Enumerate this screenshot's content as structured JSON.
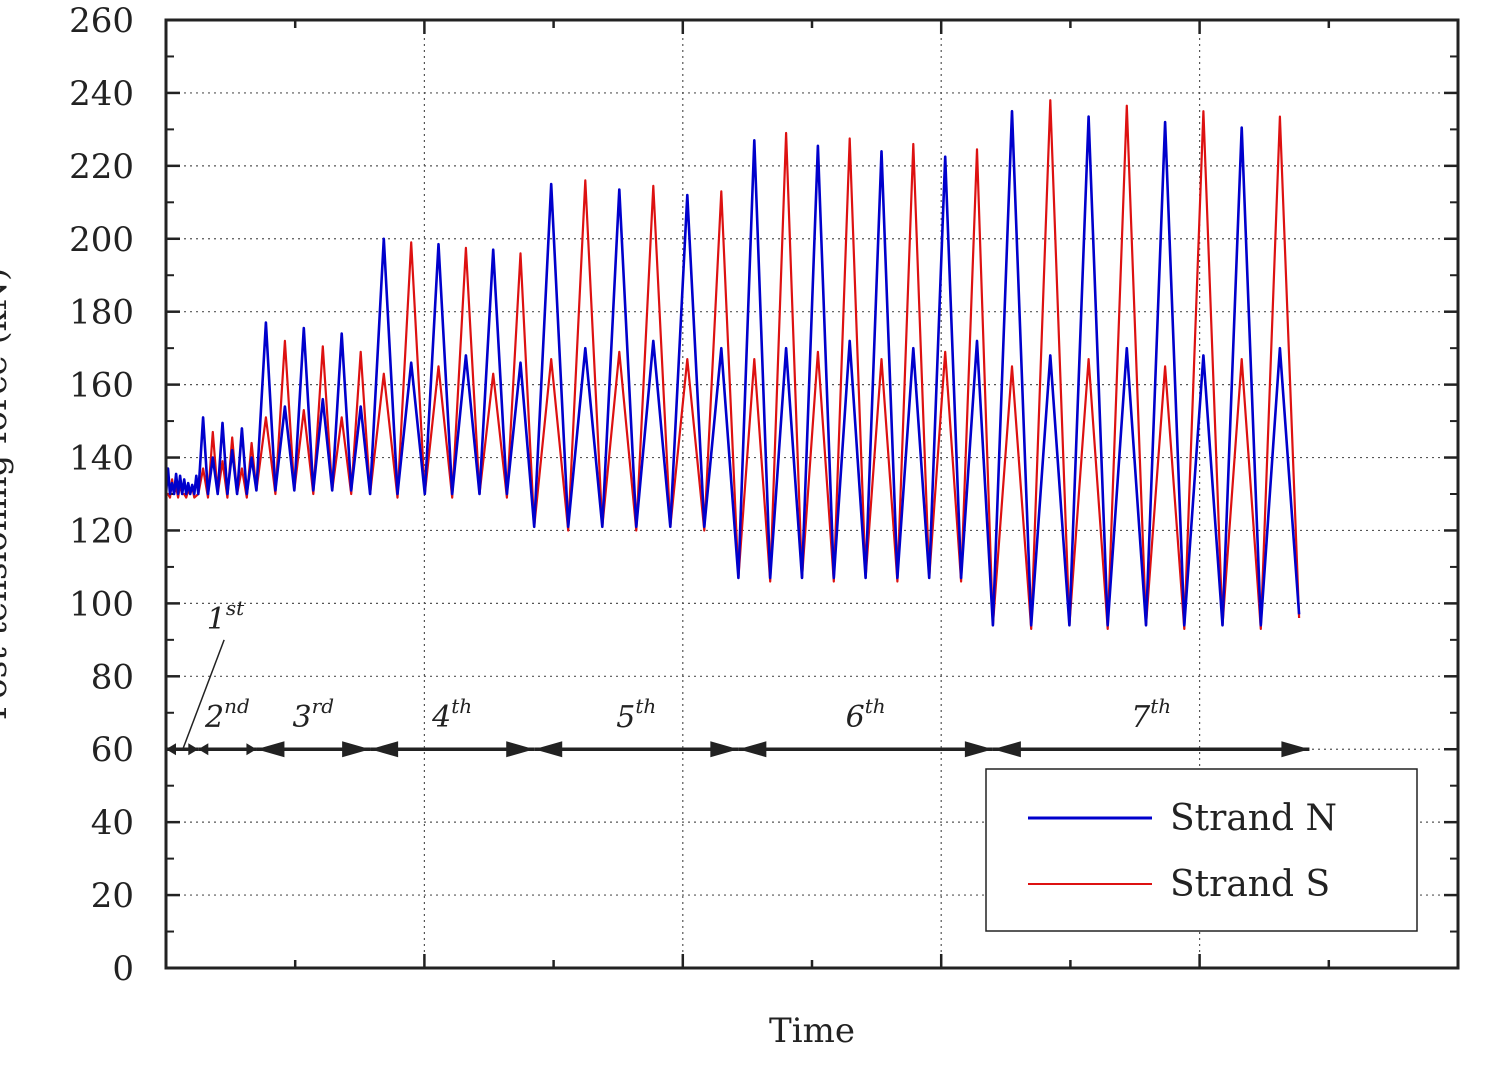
{
  "chart_data": {
    "type": "line",
    "xlabel": "Time",
    "ylabel": "Post-tensioning force (kN)",
    "ylim": [
      0,
      260
    ],
    "yticks": [
      0,
      20,
      40,
      60,
      80,
      100,
      120,
      140,
      160,
      180,
      200,
      220,
      240,
      260
    ],
    "xlim": [
      0,
      100
    ],
    "x_major_ticks": [
      0,
      20,
      40,
      60,
      80,
      100
    ],
    "grid": true,
    "legend_position": "bottom-right",
    "colors": {
      "strand_n": "#0000cc",
      "strand_s": "#dd1111",
      "arrows": "#222222"
    },
    "series": [
      {
        "name": "Strand N",
        "color": "#0000cc",
        "x": [
          0,
          0.4,
          0.8,
          1.2,
          1.6,
          2.0,
          2.4,
          2.8,
          3.2,
          3.5,
          3.8,
          4.1,
          4.5,
          5.0,
          5.7,
          6.3,
          7.0,
          7.6,
          8.2,
          8.6,
          9.2,
          10.0,
          10.6,
          11.5,
          12.3,
          13.1,
          14.0,
          14.9,
          15.7,
          16.5,
          17.4,
          18.2,
          19.1,
          20.0,
          21.0,
          22.1,
          23.1,
          24.1,
          25.1,
          26.2,
          27.2,
          28.2,
          29.2,
          30.1,
          31.0,
          32.2,
          33.4,
          34.6,
          35.7,
          36.8,
          37.9,
          39.1,
          40.3,
          41.4,
          42.5,
          44.3,
          45.9,
          47.6,
          49.3,
          50.9,
          52.6,
          54.3,
          56.0,
          57.6,
          59.3,
          61.0,
          62.6,
          64.2,
          66.6,
          68.6,
          70.8,
          72.9,
          75.0,
          77.2,
          79.2,
          81.3,
          83.4,
          85.7,
          87.7
        ],
        "y": [
          130,
          137,
          130,
          136,
          130,
          137,
          130,
          136,
          130,
          150,
          130,
          136,
          130,
          151,
          130,
          150,
          130,
          151,
          130,
          150,
          130,
          177,
          132,
          177,
          132,
          176,
          131,
          177,
          131,
          200,
          130,
          200,
          130,
          200,
          130,
          199,
          130,
          199,
          130,
          216,
          122,
          214,
          121,
          214,
          120,
          214,
          120,
          214,
          121,
          228,
          110,
          226,
          108,
          226,
          106,
          225,
          105,
          225,
          106,
          237,
          97,
          234,
          95,
          234,
          94,
          233,
          93,
          233,
          93,
          216,
          122,
          214,
          121,
          214,
          120,
          228,
          110,
          226,
          108
        ],
        "peaks_by_stage": "see stage_annotations"
      },
      {
        "name": "Strand S",
        "color": "#dd1111",
        "x": [
          0,
          0.4,
          0.8,
          1.2,
          1.6,
          2.0,
          2.4,
          2.8,
          3.5,
          4.5,
          5.5,
          6.5,
          7.0,
          8.0,
          9.0,
          10.0,
          11.0,
          12.0
        ],
        "y": [
          130,
          134,
          130,
          134,
          130,
          134,
          130,
          134,
          130,
          147,
          130,
          147,
          130,
          147,
          130,
          172,
          131,
          172
        ]
      }
    ],
    "stage_annotations": [
      "1st",
      "2nd",
      "3rd",
      "4th",
      "5th",
      "6th",
      "7th"
    ]
  },
  "legend": {
    "items": [
      {
        "label": "Strand N"
      },
      {
        "label": "Strand S"
      }
    ]
  },
  "axis_titles": {
    "x": "Time",
    "y": "Post-tensioning force (kN)"
  }
}
